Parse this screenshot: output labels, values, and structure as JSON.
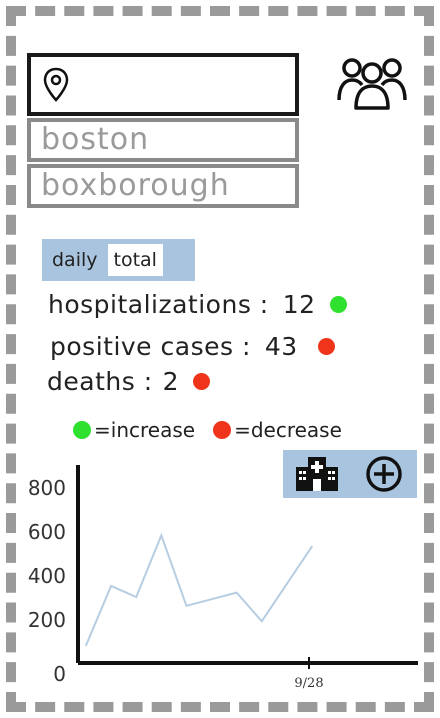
{
  "search": {
    "value": "",
    "placeholder": ""
  },
  "suggestions": [
    "boston",
    "boxborough"
  ],
  "toggle": {
    "daily_label": "daily",
    "total_label": "total"
  },
  "stats": {
    "hospitalizations": {
      "label": "hospitalizations :",
      "value": "12",
      "trend_color": "#2fe02f"
    },
    "positive_cases": {
      "label": "positive cases :",
      "value": "43",
      "trend_color": "#f0341c"
    },
    "deaths": {
      "label": "deaths :",
      "value": "2",
      "trend_color": "#f0341c"
    }
  },
  "legend": {
    "increase_label": "=increase",
    "decrease_label": "=decrease",
    "increase_color": "#2fe02f",
    "decrease_color": "#f0341c"
  },
  "chart_toolbar": {
    "icons": [
      "hospital-icon",
      "plus-circle-icon"
    ]
  },
  "chart_data": {
    "type": "line",
    "title": "",
    "xlabel": "",
    "ylabel": "",
    "ylim": [
      0,
      900
    ],
    "yticks": [
      "800",
      "600",
      "400",
      "200",
      "0"
    ],
    "x_tick_label": "9/28",
    "series": [
      {
        "values": [
          80,
          350,
          300,
          580,
          260,
          290,
          320,
          190,
          360,
          530
        ]
      }
    ],
    "line_color": "#b6cde2",
    "grid": false
  }
}
